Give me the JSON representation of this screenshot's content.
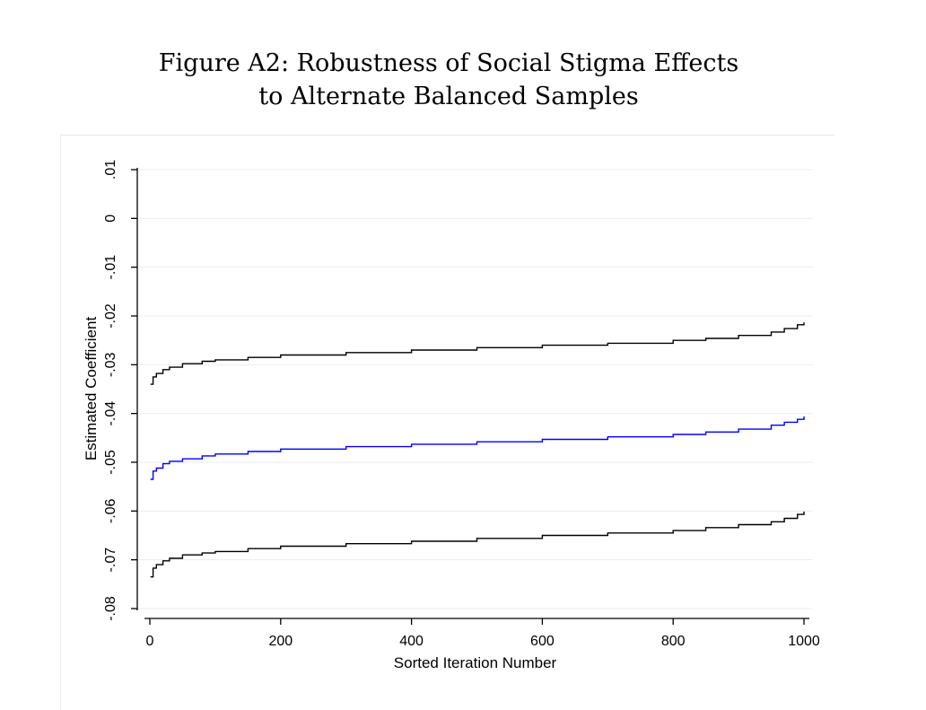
{
  "figure": {
    "title_line1": "Figure A2: Robustness of Social Stigma Effects",
    "title_line2": "to Alternate Balanced Samples"
  },
  "chart_data": {
    "type": "line",
    "xlabel": "Sorted Iteration Number",
    "ylabel": "Estimated Coefficient",
    "xlim": [
      0,
      1000
    ],
    "ylim": [
      -0.08,
      0.01
    ],
    "x_ticks": [
      0,
      200,
      400,
      600,
      800,
      1000
    ],
    "x_tick_labels": [
      "0",
      "200",
      "400",
      "600",
      "800",
      "1000"
    ],
    "y_ticks": [
      0.01,
      0,
      -0.01,
      -0.02,
      -0.03,
      -0.04,
      -0.05,
      -0.06,
      -0.07,
      -0.08
    ],
    "y_tick_labels": [
      ".01",
      "0",
      "-.01",
      "-.02",
      "-.03",
      "-.04",
      "-.05",
      "-.06",
      "-.07",
      "-.08"
    ],
    "grid": true,
    "series": [
      {
        "color": "#000000",
        "x": [
          1,
          5,
          10,
          20,
          30,
          50,
          80,
          100,
          150,
          200,
          300,
          400,
          500,
          600,
          700,
          800,
          850,
          900,
          950,
          970,
          990,
          1000
        ],
        "y": [
          -0.034,
          -0.0325,
          -0.0318,
          -0.031,
          -0.0305,
          -0.0298,
          -0.0293,
          -0.029,
          -0.0285,
          -0.028,
          -0.0275,
          -0.027,
          -0.0265,
          -0.026,
          -0.0256,
          -0.025,
          -0.0246,
          -0.024,
          -0.0233,
          -0.0226,
          -0.0218,
          -0.0213
        ]
      },
      {
        "color": "#0000ff",
        "x": [
          1,
          5,
          10,
          20,
          30,
          50,
          80,
          100,
          150,
          200,
          300,
          400,
          500,
          600,
          700,
          800,
          850,
          900,
          950,
          970,
          990,
          1000
        ],
        "y": [
          -0.0535,
          -0.0518,
          -0.0512,
          -0.0503,
          -0.0498,
          -0.0493,
          -0.0487,
          -0.0483,
          -0.0478,
          -0.0473,
          -0.0468,
          -0.0463,
          -0.0458,
          -0.0453,
          -0.0448,
          -0.0443,
          -0.0438,
          -0.0432,
          -0.0424,
          -0.0418,
          -0.0412,
          -0.0406
        ]
      },
      {
        "color": "#000000",
        "x": [
          1,
          5,
          10,
          20,
          30,
          50,
          80,
          100,
          150,
          200,
          300,
          400,
          500,
          600,
          700,
          800,
          850,
          900,
          950,
          970,
          990,
          1000
        ],
        "y": [
          -0.0735,
          -0.0717,
          -0.071,
          -0.0702,
          -0.0697,
          -0.069,
          -0.0686,
          -0.0683,
          -0.0677,
          -0.0672,
          -0.0667,
          -0.0662,
          -0.0656,
          -0.065,
          -0.0645,
          -0.064,
          -0.0634,
          -0.0628,
          -0.0622,
          -0.0615,
          -0.0607,
          -0.0601
        ]
      }
    ]
  }
}
